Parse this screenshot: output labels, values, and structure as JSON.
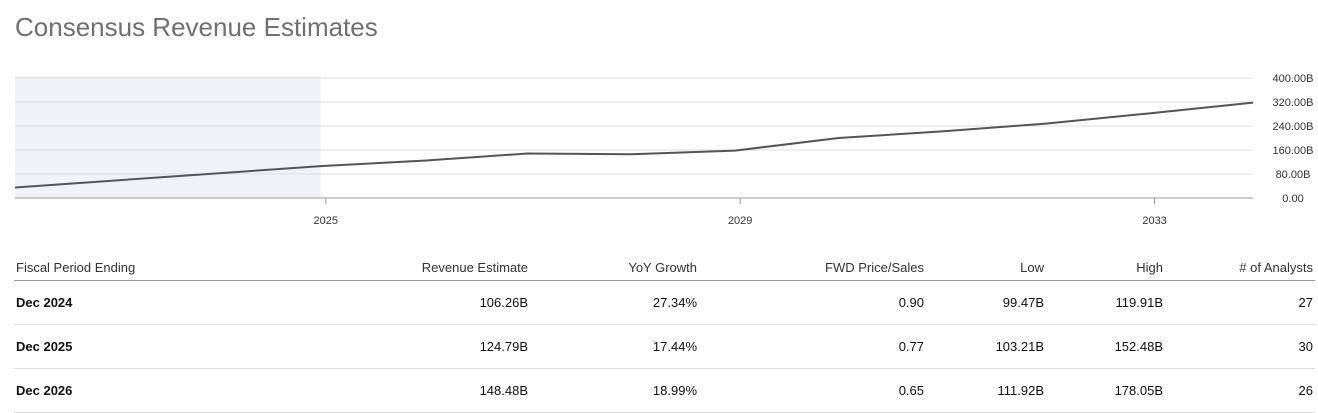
{
  "page": {
    "title": "Consensus Revenue Estimates"
  },
  "chart_data": {
    "type": "line",
    "x": [
      2022.0,
      2024.95,
      2025.95,
      2026.95,
      2027.95,
      2028.95,
      2029.95,
      2030.95,
      2031.95,
      2032.95,
      2033.95
    ],
    "series": [
      {
        "values": [
          35,
          106.26,
          124.79,
          148.48,
          146,
          158,
          200,
          222,
          248,
          282,
          318
        ]
      }
    ],
    "x_ticks": [
      2025,
      2029,
      2033
    ],
    "x_tick_labels": [
      "2025",
      "2029",
      "2033"
    ],
    "y_ticks": [
      0,
      80,
      160,
      240,
      320,
      400
    ],
    "y_tick_labels": [
      "0.00",
      "80.00B",
      "160.00B",
      "240.00B",
      "320.00B",
      "400.00B"
    ],
    "xlim": [
      2022.0,
      2033.95
    ],
    "ylim": [
      0,
      400
    ],
    "y_axis_position": "right",
    "grid": true,
    "shaded_region_x": [
      2022.0,
      2024.95
    ],
    "colors": {
      "line": "#555555",
      "shade": "#f1f2f5",
      "grid": "#dddddd"
    }
  },
  "table": {
    "columns": [
      "Fiscal Period Ending",
      "Revenue Estimate",
      "YoY Growth",
      "FWD Price/Sales",
      "Low",
      "High",
      "# of Analysts"
    ],
    "rows": [
      [
        "Dec 2024",
        "106.26B",
        "27.34%",
        "0.90",
        "99.47B",
        "119.91B",
        "27"
      ],
      [
        "Dec 2025",
        "124.79B",
        "17.44%",
        "0.77",
        "103.21B",
        "152.48B",
        "30"
      ],
      [
        "Dec 2026",
        "148.48B",
        "18.99%",
        "0.65",
        "111.92B",
        "178.05B",
        "26"
      ]
    ]
  }
}
